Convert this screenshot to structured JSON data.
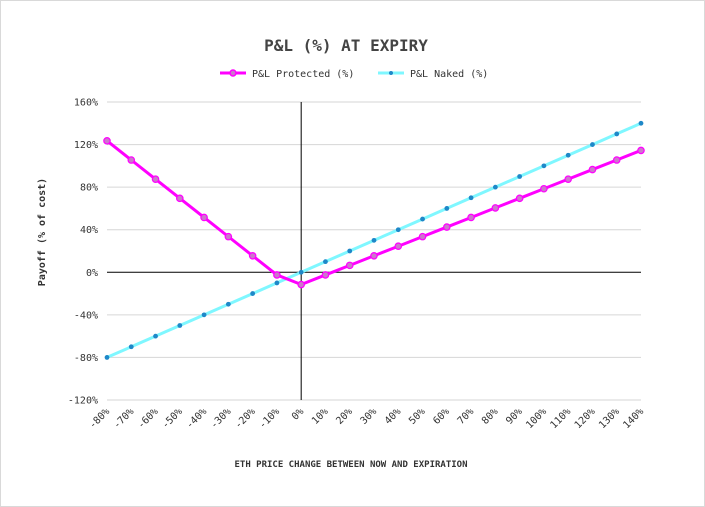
{
  "chart_data": {
    "type": "line",
    "title": "P&L (%) AT EXPIRY",
    "xlabel": "ETH PRICE CHANGE BETWEEN NOW AND EXPIRATION",
    "ylabel": "Payoff (% of cost)",
    "categories": [
      "-80%",
      "-70%",
      "-60%",
      "-50%",
      "-40%",
      "-30%",
      "-20%",
      "-10%",
      "0%",
      "10%",
      "20%",
      "30%",
      "40%",
      "50%",
      "60%",
      "70%",
      "80%",
      "90%",
      "100%",
      "110%",
      "120%",
      "130%",
      "140%"
    ],
    "x": [
      -80,
      -70,
      -60,
      -50,
      -40,
      -30,
      -20,
      -10,
      0,
      10,
      20,
      30,
      40,
      50,
      60,
      70,
      80,
      90,
      100,
      110,
      120,
      130,
      140
    ],
    "y_ticks": [
      "-120%",
      "-80%",
      "-40%",
      "0%",
      "40%",
      "80%",
      "120%",
      "160%"
    ],
    "ylim": [
      -120,
      160
    ],
    "grid": "horizontal",
    "legend_position": "top",
    "series": [
      {
        "name": "P&L Protected (%)",
        "color": "#ff00ff",
        "values": [
          123.5,
          105.5,
          87.5,
          69.5,
          51.5,
          33.5,
          15.5,
          -2.5,
          -11.5,
          -2.5,
          6.5,
          15.5,
          24.5,
          33.5,
          42.5,
          51.5,
          60.5,
          69.5,
          78.5,
          87.5,
          96.5,
          105.5,
          114.5
        ]
      },
      {
        "name": "P&L Naked (%)",
        "color": "#7ff7ff",
        "values": [
          -80,
          -70,
          -60,
          -50,
          -40,
          -30,
          -20,
          -10,
          0,
          10,
          20,
          30,
          40,
          50,
          60,
          70,
          80,
          90,
          100,
          110,
          120,
          130,
          140
        ]
      }
    ]
  }
}
